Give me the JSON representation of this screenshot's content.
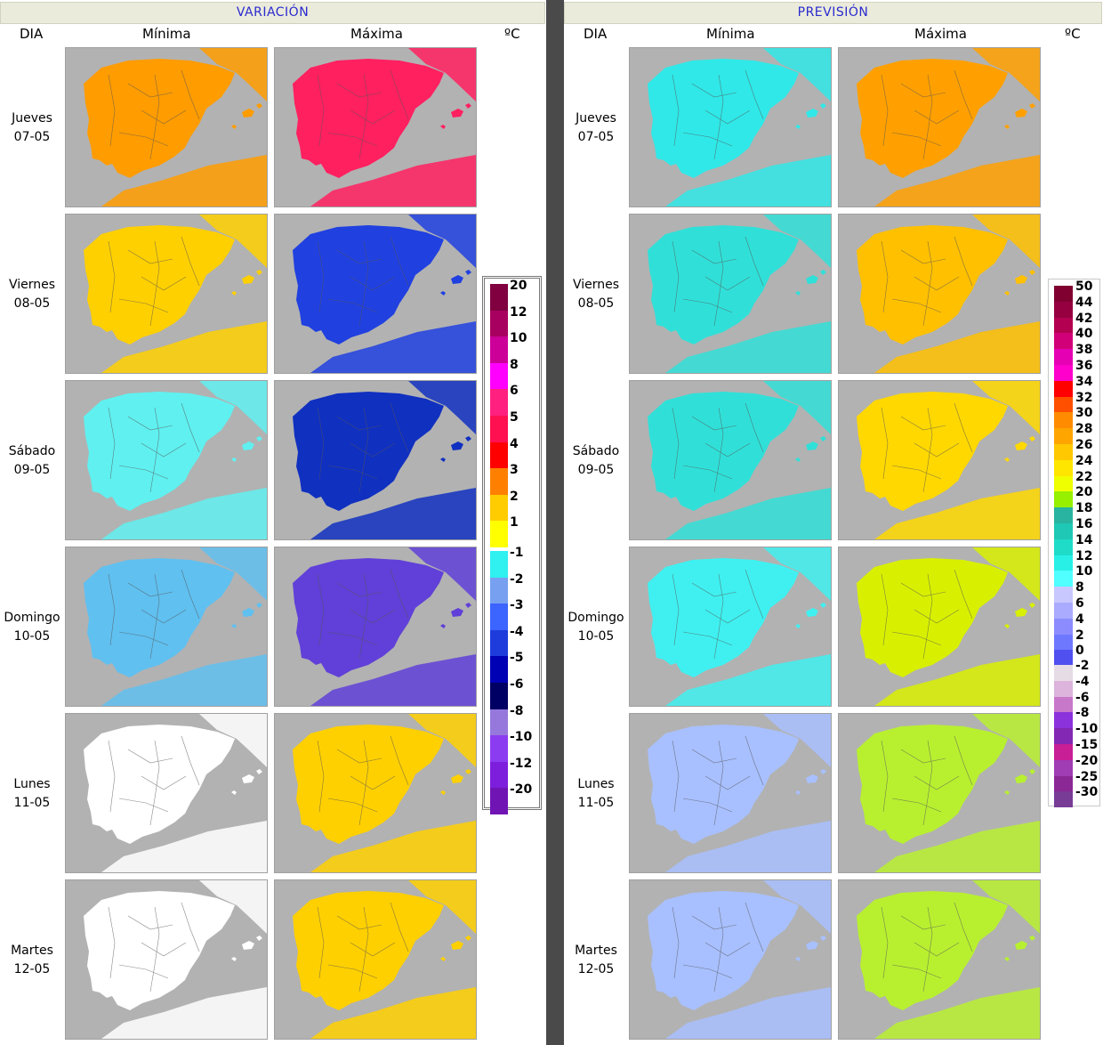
{
  "variacion": {
    "title": "VARIACIÓN",
    "col_day": "DIA",
    "col_min": "Mínima",
    "col_max": "Máxima",
    "unit": "ºC",
    "legend_positive": [
      {
        "label": "20",
        "color": "#800040"
      },
      {
        "label": "12",
        "color": "#a80060"
      },
      {
        "label": "10",
        "color": "#cc0099"
      },
      {
        "label": "8",
        "color": "#ff00ff"
      },
      {
        "label": "6",
        "color": "#ff2080"
      },
      {
        "label": "5",
        "color": "#ff1050"
      },
      {
        "label": "4",
        "color": "#ff0000"
      },
      {
        "label": "3",
        "color": "#ff8000"
      },
      {
        "label": "2",
        "color": "#ffcc00"
      },
      {
        "label": "1",
        "color": "#ffff00"
      }
    ],
    "legend_negative": [
      {
        "label": "-1",
        "color": "#30f0f0"
      },
      {
        "label": "-2",
        "color": "#78a0f0"
      },
      {
        "label": "-3",
        "color": "#3c64ff"
      },
      {
        "label": "-4",
        "color": "#1e3cdc"
      },
      {
        "label": "-5",
        "color": "#0000b4"
      },
      {
        "label": "-6",
        "color": "#000064"
      },
      {
        "label": "-8",
        "color": "#9678dc"
      },
      {
        "label": "-10",
        "color": "#8c3cf0"
      },
      {
        "label": "-12",
        "color": "#7d1edc"
      },
      {
        "label": "-20",
        "color": "#7014b4"
      }
    ]
  },
  "prevision": {
    "title": "PREVISIÓN",
    "col_day": "DIA",
    "col_min": "Mínima",
    "col_max": "Máxima",
    "unit": "ºC",
    "legend": [
      {
        "label": "50",
        "color": "#800030"
      },
      {
        "label": "44",
        "color": "#960040"
      },
      {
        "label": "42",
        "color": "#b40050"
      },
      {
        "label": "40",
        "color": "#d20078"
      },
      {
        "label": "38",
        "color": "#e600b4"
      },
      {
        "label": "36",
        "color": "#ff00cc"
      },
      {
        "label": "34",
        "color": "#ff0000"
      },
      {
        "label": "32",
        "color": "#ff5000"
      },
      {
        "label": "30",
        "color": "#ff8c00"
      },
      {
        "label": "28",
        "color": "#ffa500"
      },
      {
        "label": "26",
        "color": "#ffc800"
      },
      {
        "label": "24",
        "color": "#ffe600"
      },
      {
        "label": "22",
        "color": "#f0ff00"
      },
      {
        "label": "20",
        "color": "#96f000"
      },
      {
        "label": "18",
        "color": "#28b4a0"
      },
      {
        "label": "16",
        "color": "#1ec8b4"
      },
      {
        "label": "14",
        "color": "#1edcc8"
      },
      {
        "label": "12",
        "color": "#28f0e6"
      },
      {
        "label": "10",
        "color": "#50ffff"
      },
      {
        "label": "8",
        "color": "#c8c8ff"
      },
      {
        "label": "6",
        "color": "#aaaaff"
      },
      {
        "label": "4",
        "color": "#8c8cff"
      },
      {
        "label": "2",
        "color": "#6e78ff"
      },
      {
        "label": "0",
        "color": "#5050f0"
      },
      {
        "label": "-2",
        "color": "#e6dce6"
      },
      {
        "label": "-4",
        "color": "#dcb4dc"
      },
      {
        "label": "-6",
        "color": "#c878c8"
      },
      {
        "label": "-8",
        "color": "#8c32dc"
      },
      {
        "label": "-10",
        "color": "#8228b4"
      },
      {
        "label": "-15",
        "color": "#c81e96"
      },
      {
        "label": "-20",
        "color": "#a03cb4"
      },
      {
        "label": "-25",
        "color": "#8c2896"
      },
      {
        "label": "-30",
        "color": "#783c96"
      }
    ]
  },
  "days": [
    {
      "name": "Jueves",
      "date": "07-05",
      "var_min": "#ff9c00",
      "var_max": "#ff2060",
      "prev_min": "#30e8e8",
      "prev_max": "#ffa000"
    },
    {
      "name": "Viernes",
      "date": "08-05",
      "var_min": "#ffd000",
      "var_max": "#2040e0",
      "prev_min": "#30e0d8",
      "prev_max": "#ffc000"
    },
    {
      "name": "Sábado",
      "date": "09-05",
      "var_min": "#60f0f0",
      "var_max": "#1030c0",
      "prev_min": "#30e0d8",
      "prev_max": "#ffd800"
    },
    {
      "name": "Domingo",
      "date": "10-05",
      "var_min": "#60c0f0",
      "var_max": "#6040d8",
      "prev_min": "#40f0f0",
      "prev_max": "#d8f000"
    },
    {
      "name": "Lunes",
      "date": "11-05",
      "var_min": "#ffffff",
      "var_max": "#ffd000",
      "prev_min": "#a8c0ff",
      "prev_max": "#b8f030"
    },
    {
      "name": "Martes",
      "date": "12-05",
      "var_min": "#ffffff",
      "var_max": "#ffd000",
      "prev_min": "#a8c0ff",
      "prev_max": "#b8f030"
    }
  ]
}
